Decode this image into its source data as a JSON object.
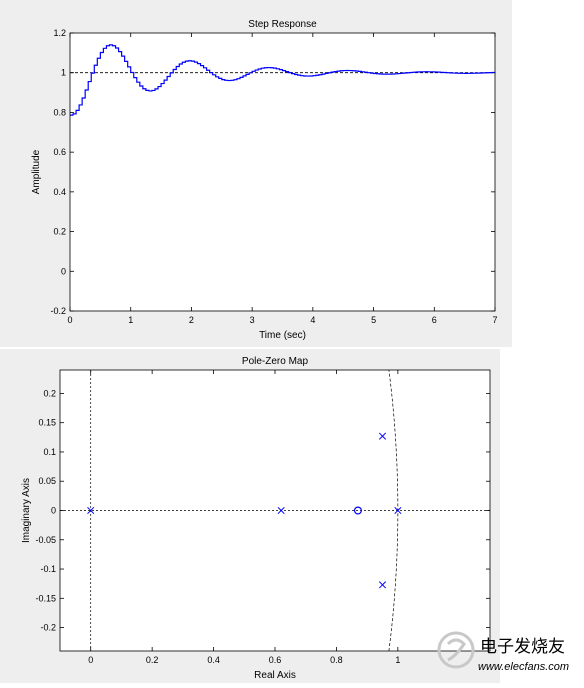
{
  "chart_data": [
    {
      "type": "line",
      "style": "stairs",
      "title": "Step Response",
      "xlabel": "Time (sec)",
      "ylabel": "Amplitude",
      "xlim": [
        0,
        7
      ],
      "ylim": [
        -0.2,
        1.2
      ],
      "xticks": [
        0,
        1,
        2,
        3,
        4,
        5,
        6,
        7
      ],
      "yticks": [
        -0.2,
        0,
        0.2,
        0.4,
        0.6,
        0.8,
        1,
        1.2
      ],
      "reference_line": {
        "y": 1,
        "style": "dashed",
        "color": "#000000"
      },
      "series_color": "#0000ff",
      "model": {
        "sample_time": 0.05,
        "final_value": 1,
        "peak_time": 0.65,
        "peak_value": 1.14,
        "settle_decay_per_period": 0.43
      },
      "grid": false
    },
    {
      "type": "scatter",
      "title": "Pole-Zero Map",
      "xlabel": "Real Axis",
      "ylabel": "Imaginary Axis",
      "xlim": [
        -0.1,
        1.3
      ],
      "ylim": [
        -0.24,
        0.24
      ],
      "xticks": [
        0,
        0.2,
        0.4,
        0.6,
        0.8,
        1
      ],
      "yticks": [
        -0.2,
        -0.15,
        -0.1,
        -0.05,
        0,
        0.05,
        0.1,
        0.15,
        0.2
      ],
      "poles": [
        {
          "re": 0,
          "im": 0
        },
        {
          "re": 0.62,
          "im": 0
        },
        {
          "re": 0.95,
          "im": 0.127
        },
        {
          "re": 0.95,
          "im": -0.127
        },
        {
          "re": 1.0,
          "im": 0
        }
      ],
      "zeros": [
        {
          "re": 0.87,
          "im": 0
        }
      ],
      "unit_circle": true,
      "marker_color": "#0000ff",
      "grid": false
    }
  ],
  "watermark": {
    "text": "电子发烧友",
    "url_text": "www.elecfans.com"
  }
}
